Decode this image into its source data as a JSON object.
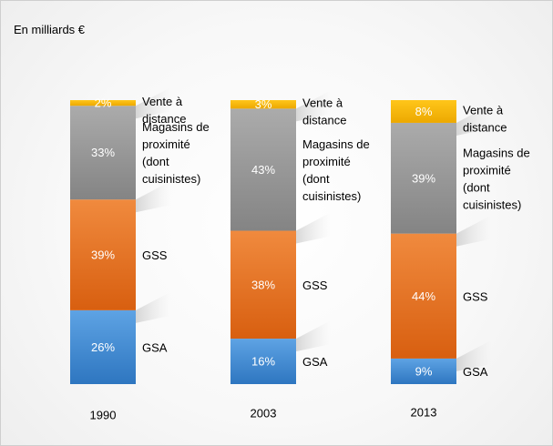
{
  "unit_label": "En milliards €",
  "colors": {
    "Vente à distance": "#f5b400",
    "Magasins de proximité (dont cuisinistes)": "#969696",
    "GSS": "#e8711e",
    "GSA": "#3d86cc"
  },
  "chart_data": {
    "type": "bar",
    "stacked": true,
    "normalized": true,
    "title": "",
    "xlabel": "",
    "ylabel": "",
    "categories": [
      "1990",
      "2003",
      "2013"
    ],
    "series": [
      {
        "name": "GSA",
        "values": [
          26,
          16,
          9
        ],
        "labels": [
          "26%",
          "16%",
          "9%"
        ],
        "legend_lines": [
          "GSA"
        ]
      },
      {
        "name": "GSS",
        "values": [
          39,
          38,
          44
        ],
        "labels": [
          "39%",
          "38%",
          "44%"
        ],
        "legend_lines": [
          "GSS"
        ]
      },
      {
        "name": "Magasins de proximité (dont cuisinistes)",
        "values": [
          33,
          43,
          39
        ],
        "labels": [
          "33%",
          "43%",
          "39%"
        ],
        "legend_lines": [
          "Magasins de",
          "proximité",
          "(dont",
          "cuisinistes)"
        ]
      },
      {
        "name": "Vente à distance",
        "values": [
          2,
          3,
          8
        ],
        "labels": [
          "2%",
          "3%",
          "8%"
        ],
        "legend_lines": [
          "Vente à",
          "distance"
        ]
      }
    ],
    "grid": false,
    "legend": "inline-right"
  }
}
